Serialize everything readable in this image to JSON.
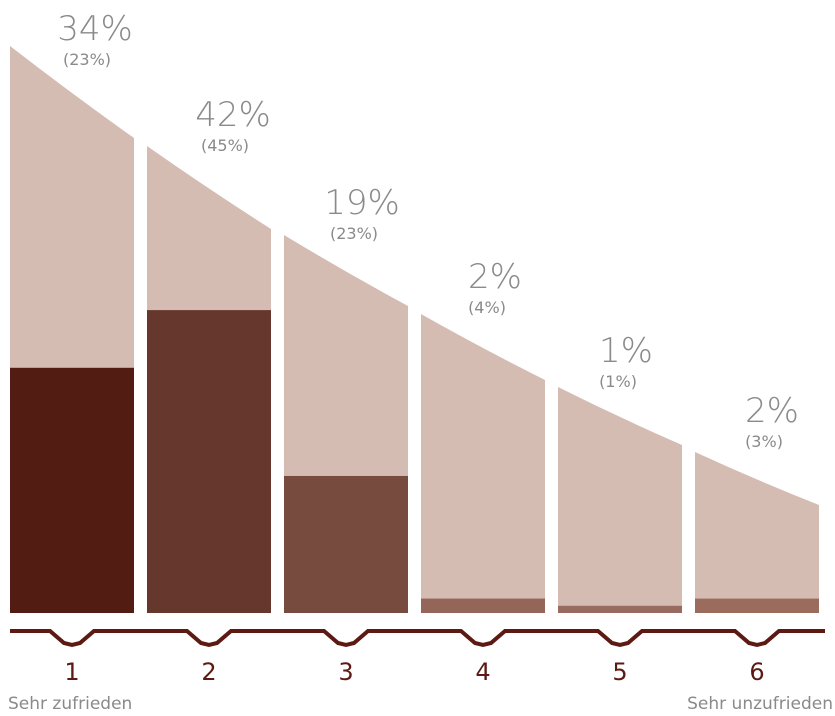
{
  "chart_data": {
    "type": "bar",
    "categories": [
      "1",
      "2",
      "3",
      "4",
      "5",
      "6"
    ],
    "series": [
      {
        "values": [
          34,
          42,
          19,
          2,
          1,
          2
        ]
      },
      {
        "values": [
          23,
          45,
          23,
          4,
          1,
          3
        ]
      }
    ],
    "value_labels": [
      "34%",
      "42%",
      "19%",
      "2%",
      "1%",
      "2%"
    ],
    "previous_labels": [
      "(23%)",
      "(45%)",
      "(23%)",
      "(4%)",
      "(1%)",
      "(3%)"
    ],
    "ylim": [
      0,
      85
    ],
    "grid": false,
    "legend": "none"
  },
  "scale_labels": {
    "left": "Sehr zufrieden",
    "right": "Sehr unzufrieden"
  },
  "colors": {
    "background_shape": "#d4bcb2",
    "bars": [
      "#521c12",
      "#66372d",
      "#784b3f",
      "#946559",
      "#976b60",
      "#9b6b5e"
    ],
    "axis": "#5c1a12",
    "category_text": "#5c1a12",
    "label_text": "#8a8a8a"
  }
}
